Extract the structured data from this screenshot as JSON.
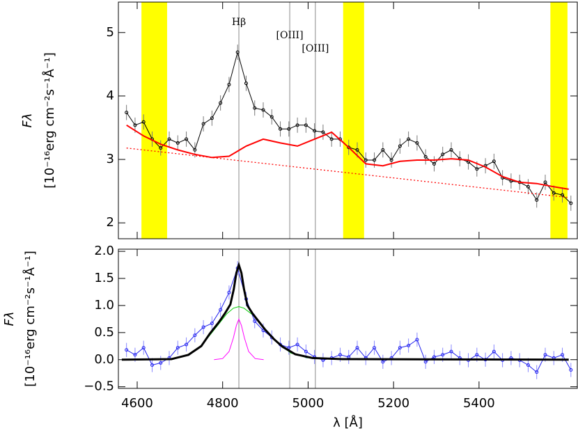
{
  "chart_data": [
    {
      "type": "line",
      "ylabel_symbol": "Fλ",
      "ylabel_units": "[10⁻¹⁶erg cm⁻²s⁻¹Å⁻¹]",
      "xlim": [
        4556,
        5630
      ],
      "ylim": [
        1.75,
        5.48
      ],
      "xticks": [
        4600,
        4800,
        5000,
        5200,
        5400
      ],
      "show_xtick_labels": false,
      "yticks": [
        2,
        3,
        4,
        5
      ],
      "bands": [
        [
          4610,
          4670
        ],
        [
          5082,
          5131
        ],
        [
          5567,
          5607
        ]
      ],
      "band_color": "#ffff00",
      "lines": [
        {
          "x": 4838,
          "label": "Hβ"
        },
        {
          "x": 4957,
          "label": "[OIII]"
        },
        {
          "x": 5017,
          "label": "[OIII]"
        }
      ],
      "series": [
        {
          "style": "points",
          "color": "#000000",
          "error_color": "#777777",
          "x": [
            4575,
            4595,
            4615,
            4635,
            4655,
            4675,
            4695,
            4715,
            4735,
            4755,
            4775,
            4795,
            4815,
            4835,
            4855,
            4875,
            4895,
            4915,
            4935,
            4955,
            4975,
            4995,
            5015,
            5035,
            5055,
            5075,
            5095,
            5115,
            5135,
            5155,
            5175,
            5195,
            5215,
            5235,
            5255,
            5275,
            5295,
            5315,
            5335,
            5355,
            5375,
            5395,
            5415,
            5435,
            5455,
            5475,
            5495,
            5515,
            5535,
            5555,
            5575,
            5595,
            5615
          ],
          "values": [
            3.74,
            3.54,
            3.59,
            3.32,
            3.18,
            3.32,
            3.26,
            3.32,
            3.15,
            3.56,
            3.65,
            3.89,
            4.18,
            4.69,
            4.2,
            3.81,
            3.78,
            3.67,
            3.48,
            3.48,
            3.54,
            3.54,
            3.45,
            3.43,
            3.32,
            3.32,
            3.19,
            3.15,
            2.99,
            2.99,
            3.15,
            2.99,
            3.21,
            3.32,
            3.26,
            3.04,
            2.93,
            3.08,
            3.15,
            3.01,
            2.96,
            2.85,
            2.9,
            2.97,
            2.71,
            2.66,
            2.64,
            2.57,
            2.36,
            2.64,
            2.47,
            2.44,
            2.31
          ],
          "errors": [
            0.12,
            0.12,
            0.12,
            0.12,
            0.12,
            0.12,
            0.12,
            0.12,
            0.12,
            0.12,
            0.12,
            0.12,
            0.12,
            0.12,
            0.12,
            0.12,
            0.12,
            0.12,
            0.12,
            0.12,
            0.12,
            0.12,
            0.12,
            0.12,
            0.12,
            0.12,
            0.12,
            0.12,
            0.12,
            0.12,
            0.12,
            0.12,
            0.12,
            0.12,
            0.12,
            0.12,
            0.12,
            0.12,
            0.12,
            0.12,
            0.12,
            0.12,
            0.12,
            0.12,
            0.12,
            0.12,
            0.12,
            0.12,
            0.12,
            0.12,
            0.12,
            0.12,
            0.12
          ]
        },
        {
          "style": "line",
          "color": "#ff0000",
          "width": 2,
          "x": [
            4575,
            4615,
            4655,
            4695,
            4735,
            4775,
            4815,
            4855,
            4895,
            4935,
            4975,
            5015,
            5055,
            5095,
            5135,
            5175,
            5215,
            5255,
            5295,
            5335,
            5375,
            5415,
            5455,
            5495,
            5535,
            5575,
            5610
          ],
          "values": [
            3.54,
            3.37,
            3.24,
            3.15,
            3.08,
            3.03,
            3.05,
            3.21,
            3.32,
            3.26,
            3.21,
            3.32,
            3.43,
            3.19,
            2.93,
            2.9,
            2.97,
            2.99,
            2.99,
            3.01,
            2.99,
            2.88,
            2.73,
            2.64,
            2.62,
            2.57,
            2.53
          ]
        },
        {
          "style": "dotted",
          "color": "#ff0000",
          "width": 1.3,
          "x": [
            4575,
            5610
          ],
          "values": [
            3.18,
            2.4
          ]
        }
      ]
    },
    {
      "type": "line",
      "ylabel_symbol": "Fλ",
      "ylabel_units": "[10⁻¹⁶erg cm⁻²s⁻¹Å⁻¹]",
      "xlabel": "λ [Å]",
      "xlim": [
        4556,
        5630
      ],
      "ylim": [
        -0.53,
        2.04
      ],
      "xticks": [
        4600,
        4800,
        5000,
        5200,
        5400
      ],
      "show_xtick_labels": true,
      "yticks": [
        {
          "value": 2.0,
          "label": "2.0"
        },
        {
          "value": 1.5,
          "label": "1.5"
        },
        {
          "value": 1.0,
          "label": "1.0"
        },
        {
          "value": 0.5,
          "label": "0.5"
        },
        {
          "value": 0.0,
          "label": "0.0"
        },
        {
          "value": -0.5,
          "label": "−0.5"
        }
      ],
      "lines": [
        {
          "x": 4838
        },
        {
          "x": 4957
        },
        {
          "x": 5017
        }
      ],
      "series": [
        {
          "style": "points",
          "color": "#2222ee",
          "error_color": "#8888ff",
          "x": [
            4575,
            4595,
            4615,
            4635,
            4655,
            4675,
            4695,
            4715,
            4735,
            4755,
            4775,
            4795,
            4815,
            4835,
            4855,
            4875,
            4895,
            4915,
            4935,
            4955,
            4975,
            4995,
            5015,
            5035,
            5055,
            5075,
            5095,
            5115,
            5135,
            5155,
            5175,
            5195,
            5215,
            5235,
            5255,
            5275,
            5295,
            5315,
            5335,
            5355,
            5375,
            5395,
            5415,
            5435,
            5455,
            5475,
            5495,
            5515,
            5535,
            5555,
            5575,
            5595,
            5615
          ],
          "values": [
            0.18,
            0.09,
            0.22,
            -0.1,
            -0.06,
            0.03,
            0.22,
            0.28,
            0.45,
            0.6,
            0.67,
            0.92,
            1.24,
            1.69,
            1.12,
            0.71,
            0.54,
            0.41,
            0.28,
            0.22,
            0.28,
            0.15,
            0.05,
            -0.01,
            0.03,
            0.09,
            0.05,
            0.22,
            0.03,
            0.22,
            -0.04,
            0.03,
            0.22,
            0.26,
            0.37,
            -0.04,
            0.05,
            0.09,
            0.15,
            0.03,
            -0.01,
            0.09,
            0.0,
            0.15,
            -0.01,
            0.03,
            -0.01,
            -0.1,
            -0.23,
            0.09,
            0.03,
            0.09,
            -0.19
          ],
          "errors": [
            0.13,
            0.13,
            0.13,
            0.13,
            0.13,
            0.13,
            0.13,
            0.13,
            0.13,
            0.13,
            0.13,
            0.13,
            0.13,
            0.13,
            0.13,
            0.13,
            0.13,
            0.13,
            0.13,
            0.13,
            0.13,
            0.13,
            0.13,
            0.13,
            0.13,
            0.13,
            0.13,
            0.13,
            0.13,
            0.13,
            0.13,
            0.13,
            0.13,
            0.13,
            0.13,
            0.13,
            0.13,
            0.13,
            0.13,
            0.13,
            0.13,
            0.13,
            0.13,
            0.13,
            0.13,
            0.13,
            0.13,
            0.13,
            0.13,
            0.13,
            0.13,
            0.13,
            0.13
          ]
        },
        {
          "style": "line",
          "color": "#00cc00",
          "width": 1,
          "x": [
            4720,
            4750,
            4770,
            4790,
            4810,
            4825,
            4838,
            4850,
            4870,
            4890,
            4910,
            4930,
            4960,
            5000
          ],
          "values": [
            0.09,
            0.25,
            0.45,
            0.65,
            0.85,
            0.95,
            0.98,
            0.95,
            0.83,
            0.65,
            0.45,
            0.3,
            0.12,
            0.03
          ]
        },
        {
          "style": "line",
          "color": "#ff00ff",
          "width": 1,
          "x": [
            4780,
            4800,
            4815,
            4825,
            4832,
            4838,
            4844,
            4851,
            4861,
            4876,
            4896
          ],
          "values": [
            0,
            0.02,
            0.15,
            0.4,
            0.63,
            0.75,
            0.63,
            0.4,
            0.15,
            0.02,
            0
          ]
        },
        {
          "style": "line",
          "color": "#000000",
          "width": 3,
          "x": [
            4564,
            4680,
            4720,
            4750,
            4770,
            4790,
            4805,
            4818,
            4826,
            4832,
            4838,
            4844,
            4850,
            4858,
            4870,
            4885,
            4900,
            4920,
            4940,
            4970,
            5010,
            5080,
            5610
          ],
          "values": [
            0,
            0.01,
            0.09,
            0.25,
            0.48,
            0.68,
            0.85,
            1.02,
            1.3,
            1.6,
            1.75,
            1.6,
            1.3,
            1.0,
            0.85,
            0.7,
            0.55,
            0.38,
            0.24,
            0.1,
            0.03,
            0.01,
            0
          ]
        }
      ]
    }
  ]
}
